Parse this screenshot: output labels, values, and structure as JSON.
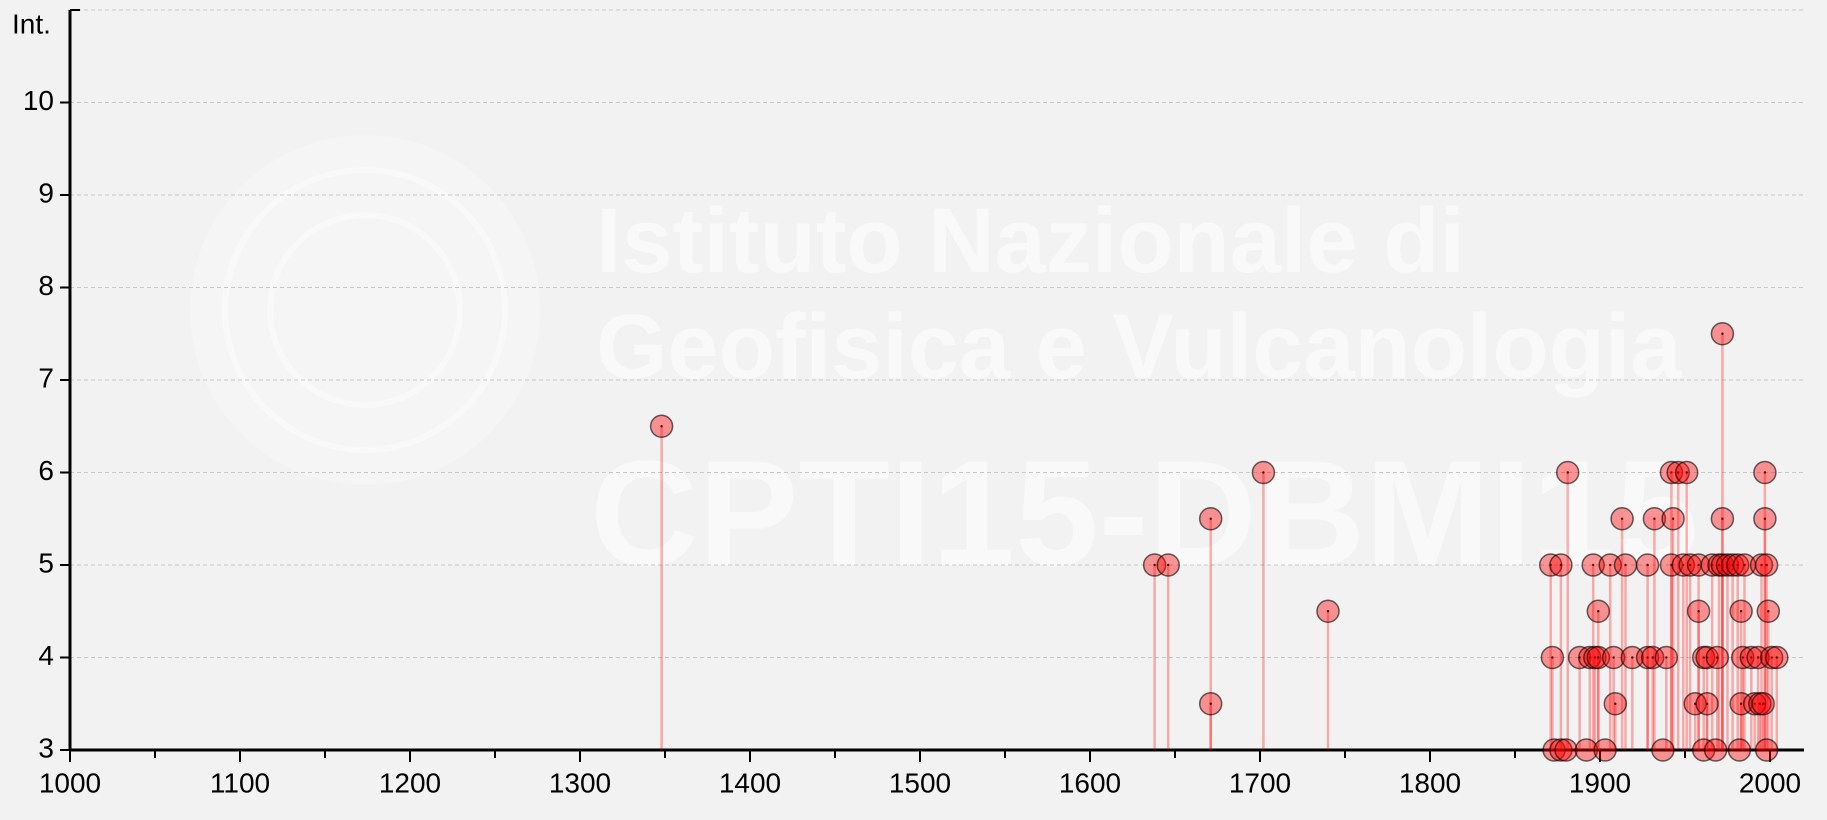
{
  "chart_data": {
    "type": "stem",
    "ylabel": "Int.",
    "watermark": [
      "Istituto Nazionale di",
      "Geofisica e Vulcanologia",
      "CPTI15-DBMI15"
    ],
    "color": "#ff0000",
    "x": [
      1348,
      1638,
      1646,
      1671,
      1671,
      1702,
      1740,
      1871,
      1872,
      1873,
      1877,
      1877,
      1881,
      1880,
      1888,
      1892,
      1894,
      1896,
      1897,
      1899,
      1899,
      1903,
      1906,
      1908,
      1909,
      1913,
      1915,
      1919,
      1928,
      1928,
      1931,
      1932,
      1937,
      1939,
      1942,
      1943,
      1942,
      1946,
      1949,
      1951,
      1953,
      1956,
      1958,
      1958,
      1961,
      1961,
      1963,
      1963,
      1966,
      1968,
      1969,
      1970,
      1972,
      1972,
      1972,
      1975,
      1978,
      1981,
      1983,
      1983,
      1982,
      1985,
      1984,
      1989,
      1991,
      1994,
      1993,
      1995,
      1996,
      1997,
      1997,
      1998,
      1999,
      1998,
      2001,
      2004
    ],
    "values": [
      6.5,
      5,
      5,
      5.5,
      3.5,
      6,
      4.5,
      5,
      4,
      3,
      5,
      3,
      6,
      3,
      4,
      3,
      4,
      5,
      4,
      4.5,
      4,
      3,
      5,
      4,
      3.5,
      5.5,
      5,
      4,
      5,
      4,
      4,
      5.5,
      3,
      4,
      6,
      5.5,
      5,
      6,
      5,
      6,
      5,
      3.5,
      5,
      4.5,
      4,
      3,
      3.5,
      4,
      5,
      3,
      4,
      5,
      7.5,
      5.5,
      5,
      5,
      5,
      5,
      4.5,
      3.5,
      3,
      5,
      4,
      4,
      3.5,
      3.5,
      4,
      5,
      3.5,
      6,
      5.5,
      5,
      4.5,
      3,
      4,
      4
    ],
    "xlim": [
      1000,
      2020
    ],
    "ylim": [
      3,
      11
    ],
    "xticks": [
      1000,
      1100,
      1200,
      1300,
      1400,
      1500,
      1600,
      1700,
      1800,
      1900,
      2000
    ],
    "xminor_ticks": [
      1050,
      1150,
      1250,
      1350,
      1450,
      1550,
      1650,
      1750,
      1850,
      1950
    ],
    "yticks": [
      3,
      4,
      5,
      6,
      7,
      8,
      9,
      10
    ],
    "grid": true
  }
}
